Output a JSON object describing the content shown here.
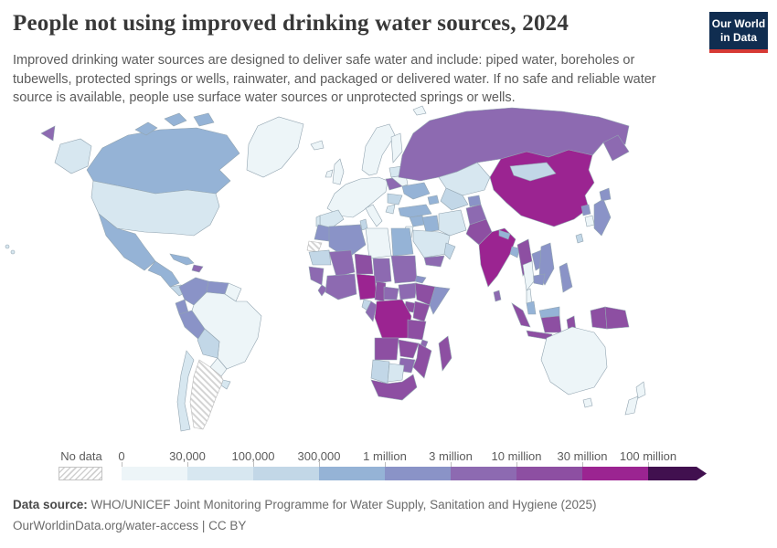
{
  "header": {
    "title": "People not using improved drinking water sources, 2024",
    "subtitle": "Improved drinking water sources are designed to deliver safe water and include: piped water, boreholes or tubewells, protected springs or wells, rainwater, and packaged or delivered water. If no safe and reliable water source is available, people use surface water sources or unprotected springs or wells.",
    "logo": {
      "line1": "Our World",
      "line2": "in Data",
      "bg_color": "#102d50",
      "accent_color": "#d73a35"
    }
  },
  "legend": {
    "no_data_label": "No data",
    "tick_labels": [
      "0",
      "30,000",
      "100,000",
      "300,000",
      "1 million",
      "3 million",
      "10 million",
      "30 million",
      "100 million"
    ],
    "bin_colors": [
      "#edf5f8",
      "#d7e7f0",
      "#c2d7e7",
      "#95b3d6",
      "#8a93c7",
      "#8d6ab1",
      "#8d4fa2",
      "#9b2491",
      "#41104f"
    ],
    "hatch_color": "#d4d4d4"
  },
  "footer": {
    "source_label": "Data source:",
    "source_text": " WHO/UNICEF Joint Monitoring Programme for Water Supply, Sanitation and Hygiene (2025)",
    "note": "OurWorldinData.org/water-access | CC BY"
  },
  "chart_data": {
    "type": "choropleth_map",
    "title": "People not using improved drinking water sources",
    "year": 2024,
    "unit": "people",
    "bins": [
      "0–30,000",
      "30,000–100,000",
      "100,000–300,000",
      "300,000–1 million",
      "1–3 million",
      "3–10 million",
      "10–30 million",
      "30–100 million",
      "100 million+",
      "no-data"
    ],
    "countries": [
      {
        "name": "Canada",
        "slug": "canada",
        "bin": 3
      },
      {
        "name": "United States",
        "slug": "usa",
        "bin": 1
      },
      {
        "name": "Alaska (US)",
        "slug": "alaska",
        "bin": 1
      },
      {
        "name": "Hawaii (US)",
        "slug": "hawaii",
        "bin": 1
      },
      {
        "name": "Greenland",
        "slug": "greenland",
        "bin": 0
      },
      {
        "name": "Mexico",
        "slug": "mexico",
        "bin": 3
      },
      {
        "name": "Guatemala-Honduras-Nicaragua",
        "slug": "central-america-north",
        "bin": 3
      },
      {
        "name": "Costa Rica-Panama",
        "slug": "central-america-south",
        "bin": 2
      },
      {
        "name": "Cuba",
        "slug": "cuba",
        "bin": 3
      },
      {
        "name": "Haiti-Dominican Republic",
        "slug": "hispaniola",
        "bin": 5
      },
      {
        "name": "Colombia",
        "slug": "colombia",
        "bin": 4
      },
      {
        "name": "Venezuela",
        "slug": "venezuela",
        "bin": 4
      },
      {
        "name": "Guyana-Suriname",
        "slug": "guyanas",
        "bin": 0
      },
      {
        "name": "Ecuador",
        "slug": "ecuador",
        "bin": 4
      },
      {
        "name": "Peru",
        "slug": "peru",
        "bin": 4
      },
      {
        "name": "Brazil",
        "slug": "brazil",
        "bin": 0
      },
      {
        "name": "Bolivia",
        "slug": "bolivia",
        "bin": 2
      },
      {
        "name": "Paraguay",
        "slug": "paraguay",
        "bin": 0
      },
      {
        "name": "Uruguay",
        "slug": "uruguay",
        "bin": 1
      },
      {
        "name": "Chile",
        "slug": "chile",
        "bin": 1
      },
      {
        "name": "Argentina",
        "slug": "argentina",
        "bin": "no-data"
      },
      {
        "name": "Iceland",
        "slug": "iceland",
        "bin": 0
      },
      {
        "name": "Ireland",
        "slug": "ireland",
        "bin": 0
      },
      {
        "name": "United Kingdom",
        "slug": "uk",
        "bin": 0
      },
      {
        "name": "Norway-Sweden",
        "slug": "scandinavia",
        "bin": 0
      },
      {
        "name": "Finland",
        "slug": "finland",
        "bin": 0
      },
      {
        "name": "Western-Central Europe",
        "slug": "west-europe",
        "bin": 0
      },
      {
        "name": "Spain",
        "slug": "spain",
        "bin": 1
      },
      {
        "name": "Portugal",
        "slug": "portugal",
        "bin": 1
      },
      {
        "name": "Italy",
        "slug": "italy",
        "bin": 0
      },
      {
        "name": "Poland",
        "slug": "poland",
        "bin": 5
      },
      {
        "name": "Baltic states",
        "slug": "baltics",
        "bin": 1
      },
      {
        "name": "Belarus",
        "slug": "belarus",
        "bin": 0
      },
      {
        "name": "Ukraine",
        "slug": "ukraine",
        "bin": 3
      },
      {
        "name": "Romania-Balkans",
        "slug": "balkans",
        "bin": 2
      },
      {
        "name": "Greece",
        "slug": "greece",
        "bin": 1
      },
      {
        "name": "Turkey",
        "slug": "turkey",
        "bin": 3
      },
      {
        "name": "Russia",
        "slug": "russia",
        "bin": 5
      },
      {
        "name": "Kazakhstan",
        "slug": "kazakhstan",
        "bin": 1
      },
      {
        "name": "Uzbekistan-Turkmenistan",
        "slug": "uzbek-turkmen",
        "bin": 2
      },
      {
        "name": "Kyrgyzstan-Tajikistan",
        "slug": "kyrgyz-tajik",
        "bin": 4
      },
      {
        "name": "Caucasus",
        "slug": "caucasus",
        "bin": 3
      },
      {
        "name": "Mongolia",
        "slug": "mongolia",
        "bin": 2
      },
      {
        "name": "China",
        "slug": "china",
        "bin": 7
      },
      {
        "name": "Japan",
        "slug": "japan",
        "bin": 4
      },
      {
        "name": "North Korea",
        "slug": "north-korea",
        "bin": 4
      },
      {
        "name": "South Korea",
        "slug": "south-korea",
        "bin": 0
      },
      {
        "name": "Taiwan",
        "slug": "taiwan",
        "bin": 2
      },
      {
        "name": "Syria",
        "slug": "syria",
        "bin": 3
      },
      {
        "name": "Iraq",
        "slug": "iraq",
        "bin": 3
      },
      {
        "name": "Iran",
        "slug": "iran",
        "bin": 1
      },
      {
        "name": "Jordan-Israel",
        "slug": "jordan-israel",
        "bin": 0
      },
      {
        "name": "Saudi Arabia",
        "slug": "saudi-arabia",
        "bin": 1
      },
      {
        "name": "Yemen",
        "slug": "yemen",
        "bin": 5
      },
      {
        "name": "Oman",
        "slug": "oman",
        "bin": 2
      },
      {
        "name": "Afghanistan",
        "slug": "afghanistan",
        "bin": 5
      },
      {
        "name": "Pakistan",
        "slug": "pakistan",
        "bin": 6
      },
      {
        "name": "India",
        "slug": "india",
        "bin": 7
      },
      {
        "name": "Nepal",
        "slug": "nepal",
        "bin": 3
      },
      {
        "name": "Bangladesh",
        "slug": "bangladesh",
        "bin": 3
      },
      {
        "name": "Sri Lanka",
        "slug": "sri-lanka",
        "bin": 5
      },
      {
        "name": "Myanmar",
        "slug": "myanmar",
        "bin": 6
      },
      {
        "name": "Thailand",
        "slug": "thailand",
        "bin": 0
      },
      {
        "name": "Laos",
        "slug": "laos",
        "bin": 4
      },
      {
        "name": "Vietnam",
        "slug": "vietnam",
        "bin": 4
      },
      {
        "name": "Cambodia",
        "slug": "cambodia",
        "bin": 4
      },
      {
        "name": "Malaysia",
        "slug": "malaysia",
        "bin": 3
      },
      {
        "name": "Indonesia",
        "slug": "indonesia",
        "bin": 6
      },
      {
        "name": "Philippines",
        "slug": "philippines",
        "bin": 4
      },
      {
        "name": "Papua New Guinea",
        "slug": "png",
        "bin": 6
      },
      {
        "name": "Australia",
        "slug": "australia",
        "bin": 0
      },
      {
        "name": "New Zealand",
        "slug": "new-zealand",
        "bin": 0
      },
      {
        "name": "Morocco",
        "slug": "morocco",
        "bin": 4
      },
      {
        "name": "Western Sahara",
        "slug": "western-sahara",
        "bin": "no-data"
      },
      {
        "name": "Algeria",
        "slug": "algeria",
        "bin": 4
      },
      {
        "name": "Tunisia",
        "slug": "tunisia",
        "bin": 2
      },
      {
        "name": "Libya",
        "slug": "libya",
        "bin": 0
      },
      {
        "name": "Egypt",
        "slug": "egypt",
        "bin": 3
      },
      {
        "name": "Mauritania",
        "slug": "mauritania",
        "bin": 2
      },
      {
        "name": "Mali",
        "slug": "mali",
        "bin": 5
      },
      {
        "name": "Niger",
        "slug": "niger",
        "bin": 6
      },
      {
        "name": "Chad",
        "slug": "chad",
        "bin": 5
      },
      {
        "name": "Sudan",
        "slug": "sudan",
        "bin": 5
      },
      {
        "name": "Eritrea-Djibouti",
        "slug": "eritrea",
        "bin": 4
      },
      {
        "name": "Senegal-Guinea",
        "slug": "senegal-guinea",
        "bin": 5
      },
      {
        "name": "Sierra Leone-Liberia",
        "slug": "sierra-liberia",
        "bin": 5
      },
      {
        "name": "Côte d'Ivoire-Ghana-Burkina Faso",
        "slug": "ivory-ghana",
        "bin": 5
      },
      {
        "name": "Nigeria",
        "slug": "nigeria",
        "bin": 7
      },
      {
        "name": "Cameroon",
        "slug": "cameroon",
        "bin": 6
      },
      {
        "name": "Central African Republic",
        "slug": "car",
        "bin": 5
      },
      {
        "name": "South Sudan",
        "slug": "south-sudan",
        "bin": 5
      },
      {
        "name": "Ethiopia",
        "slug": "ethiopia",
        "bin": 6
      },
      {
        "name": "Somalia",
        "slug": "somalia",
        "bin": 4
      },
      {
        "name": "Kenya",
        "slug": "kenya",
        "bin": 6
      },
      {
        "name": "Uganda",
        "slug": "uganda",
        "bin": 6
      },
      {
        "name": "Democratic Republic of Congo",
        "slug": "drc",
        "bin": 7
      },
      {
        "name": "Gabon",
        "slug": "gabon",
        "bin": 2
      },
      {
        "name": "Congo",
        "slug": "congo",
        "bin": 5
      },
      {
        "name": "Tanzania",
        "slug": "tanzania",
        "bin": 6
      },
      {
        "name": "Malawi",
        "slug": "malawi",
        "bin": 5
      },
      {
        "name": "Angola",
        "slug": "angola",
        "bin": 6
      },
      {
        "name": "Zambia",
        "slug": "zambia",
        "bin": 6
      },
      {
        "name": "Mozambique",
        "slug": "mozambique",
        "bin": 6
      },
      {
        "name": "Zimbabwe",
        "slug": "zimbabwe",
        "bin": 5
      },
      {
        "name": "Namibia",
        "slug": "namibia",
        "bin": 2
      },
      {
        "name": "Botswana",
        "slug": "botswana",
        "bin": 1
      },
      {
        "name": "South Africa",
        "slug": "south-africa",
        "bin": 6
      },
      {
        "name": "Madagascar",
        "slug": "madagascar",
        "bin": 6
      }
    ]
  }
}
